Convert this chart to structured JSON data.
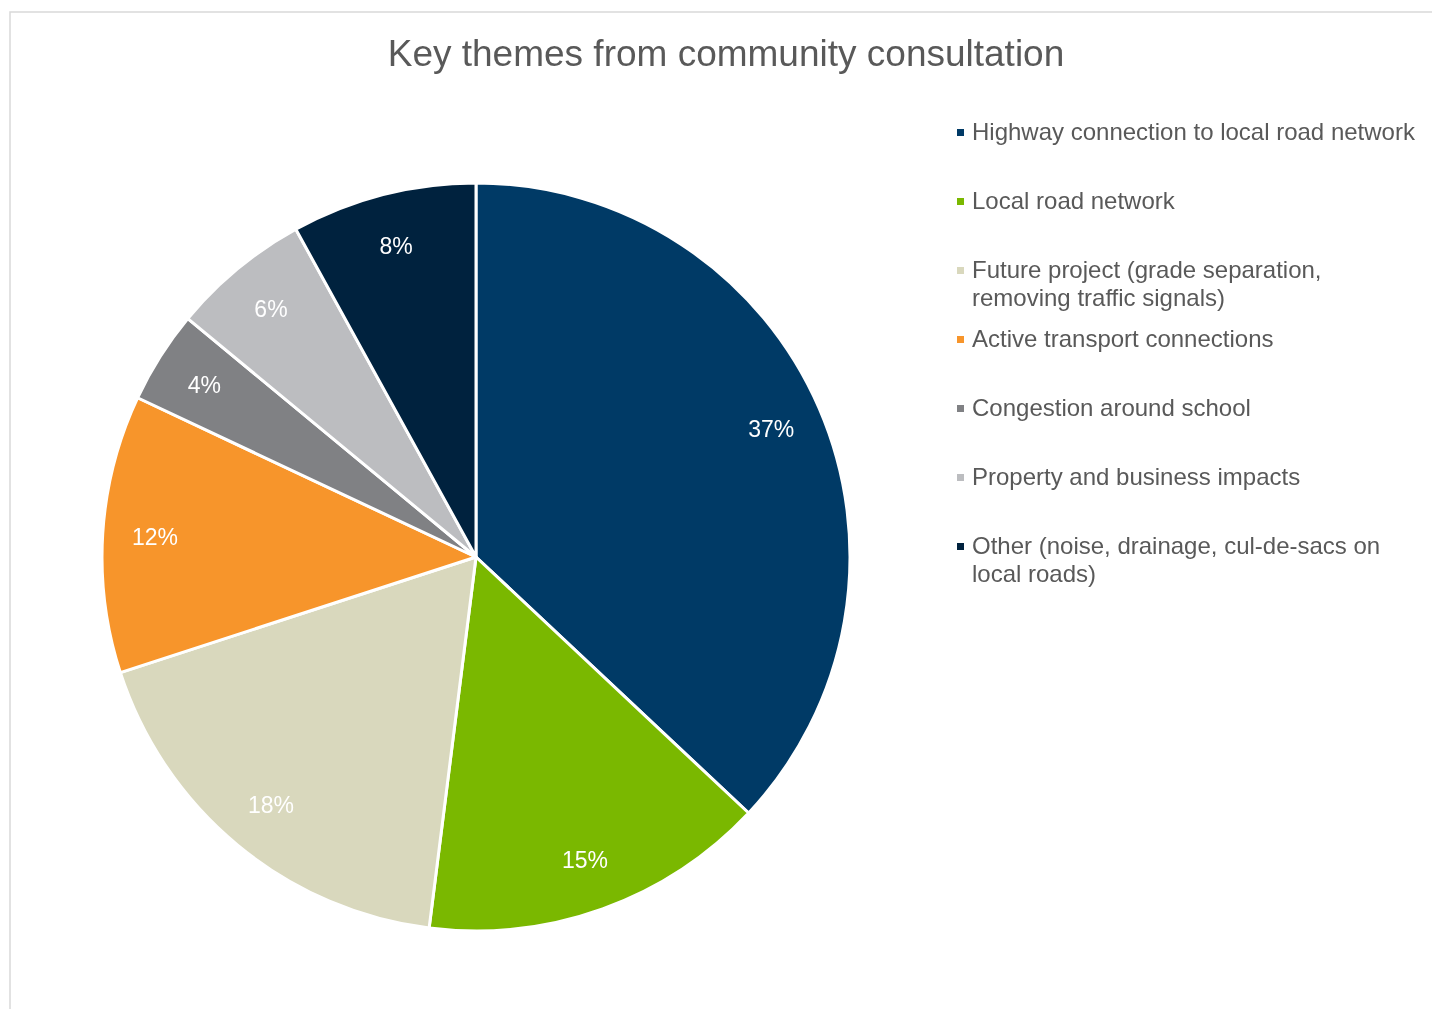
{
  "chart_data": {
    "type": "pie",
    "title": "Key themes from community consultation",
    "categories": [
      "Highway connection to local road network",
      "Local road network",
      "Future project (grade separation, removing traffic signals)",
      "Active transport connections",
      "Congestion around school",
      "Property and business impacts",
      "Other (noise, drainage, cul-de-sacs on local roads)"
    ],
    "values": [
      37,
      15,
      18,
      12,
      4,
      6,
      8
    ],
    "colors": [
      "#003a66",
      "#7ab800",
      "#d9d8bd",
      "#f7952b",
      "#808184",
      "#bcbdc0",
      "#00223e"
    ],
    "value_labels": [
      "37%",
      "15%",
      "18%",
      "12%",
      "4%",
      "6%",
      "8%"
    ],
    "legend": "right"
  }
}
